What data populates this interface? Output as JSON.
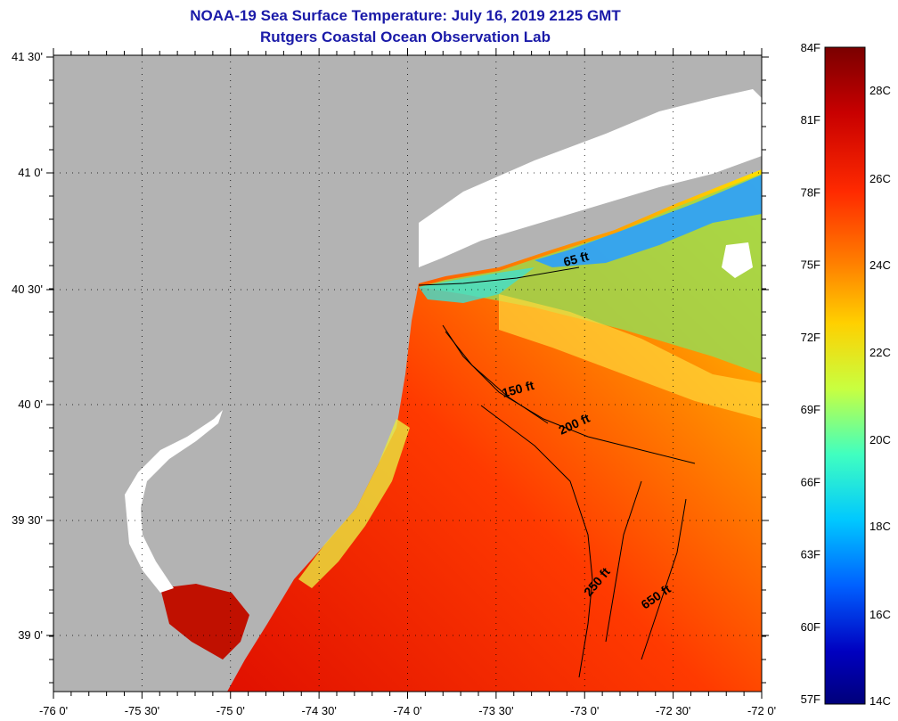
{
  "title": {
    "line1": "NOAA-19 Sea Surface Temperature:  July 16, 2019 2125 GMT",
    "line2": "Rutgers Coastal Ocean Observation Lab"
  },
  "map": {
    "x_ticks": [
      "-76 0'",
      "-75 30'",
      "-75 0'",
      "-74 30'",
      "-74 0'",
      "-73 30'",
      "-73 0'",
      "-72 30'",
      "-72 0'"
    ],
    "y_ticks": [
      "41 30'",
      "41 0'",
      "40 30'",
      "40 0'",
      "39 30'",
      "39 0'"
    ],
    "land_color": "#b3b3b3",
    "cloud_color": "#ffffff",
    "depth_contours": [
      "65 ft",
      "150 ft",
      "200 ft",
      "250 ft",
      "650 ft"
    ]
  },
  "colorbar": {
    "fahrenheit_labels": [
      "84F",
      "81F",
      "78F",
      "75F",
      "72F",
      "69F",
      "66F",
      "63F",
      "60F",
      "57F"
    ],
    "celsius_labels": [
      "28C",
      "26C",
      "24C",
      "22C",
      "20C",
      "18C",
      "16C",
      "14C"
    ],
    "min_c": 14,
    "max_c": 29,
    "colors": [
      "#7a0000",
      "#c80000",
      "#ff2a00",
      "#ff8000",
      "#ffd000",
      "#c8ff40",
      "#40ffc0",
      "#00c8ff",
      "#0060ff",
      "#0000c0",
      "#00007a"
    ]
  }
}
